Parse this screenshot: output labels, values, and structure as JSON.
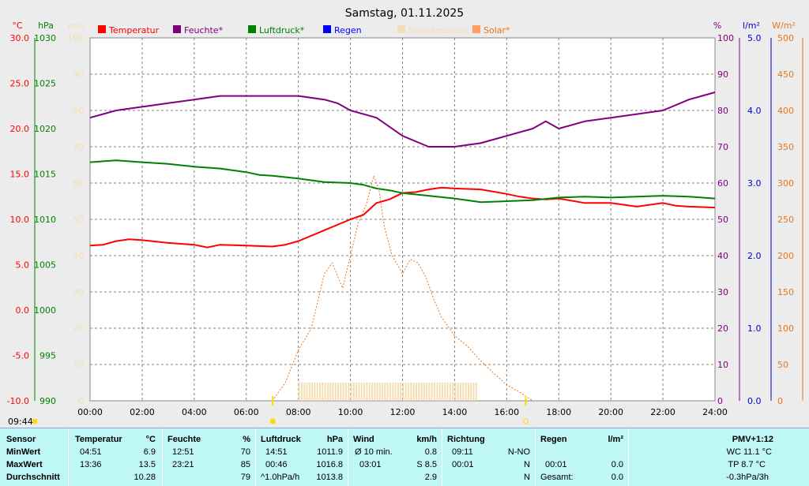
{
  "chart_data": {
    "type": "line",
    "title": "Samstag, 01.11.2025",
    "x_ticks": [
      "00:00",
      "02:00",
      "04:00",
      "06:00",
      "08:00",
      "10:00",
      "12:00",
      "14:00",
      "16:00",
      "18:00",
      "20:00",
      "22:00",
      "24:00"
    ],
    "x_range_hours": [
      0,
      24
    ],
    "axes": {
      "temp": {
        "unit": "°C",
        "ticks": [
          "30.0",
          "25.0",
          "20.0",
          "15.0",
          "10.0",
          "5.0",
          "0.0",
          "-5.0",
          "-10.0"
        ],
        "range": [
          -10,
          30
        ],
        "color": "#ff0000"
      },
      "pressure": {
        "unit": "hPa",
        "ticks": [
          "1030",
          "1025",
          "1020",
          "1015",
          "1010",
          "1005",
          "1000",
          "995",
          "990"
        ],
        "range": [
          990,
          1030
        ],
        "color": "#008000"
      },
      "minutes": {
        "unit": "min",
        "ticks": [
          "100",
          "90",
          "80",
          "70",
          "60",
          "50",
          "40",
          "30",
          "20",
          "10",
          "0"
        ],
        "range": [
          0,
          100
        ],
        "color": "#f5deb3"
      },
      "humidity": {
        "unit": "%",
        "ticks": [
          "100",
          "90",
          "80",
          "70",
          "60",
          "50",
          "40",
          "30",
          "20",
          "10",
          "0"
        ],
        "range": [
          0,
          100
        ],
        "color": "#800080"
      },
      "rain": {
        "unit": "l/m²",
        "ticks": [
          "5.0",
          "4.0",
          "3.0",
          "2.0",
          "1.0",
          "0.0"
        ],
        "range": [
          0,
          5
        ],
        "color": "#0000cd"
      },
      "solar": {
        "unit": "W/m²",
        "ticks": [
          "500",
          "450",
          "400",
          "350",
          "300",
          "250",
          "200",
          "150",
          "100",
          "50",
          "0"
        ],
        "range": [
          0,
          500
        ],
        "color": "#e8761a"
      }
    },
    "legend": [
      {
        "name": "Temperatur",
        "color": "#ff0000"
      },
      {
        "name": "Feuchte*",
        "color": "#800080"
      },
      {
        "name": "Luftdruck*",
        "color": "#008000"
      },
      {
        "name": "Regen",
        "color": "#0000ff"
      },
      {
        "name": "Sonnenschein",
        "color": "#f5deb3"
      },
      {
        "name": "Solar*",
        "color": "#ffa060"
      }
    ],
    "series": [
      {
        "name": "Temperatur",
        "axis": "temp",
        "color": "#ff0000",
        "x": [
          0,
          0.5,
          1,
          1.5,
          2,
          3,
          4,
          4.5,
          5,
          6,
          7,
          7.5,
          8,
          9,
          10,
          10.5,
          11,
          11.5,
          12,
          12.5,
          13,
          13.5,
          14,
          15,
          16,
          16.5,
          17,
          17.5,
          18,
          19,
          20,
          21,
          22,
          22.5,
          23,
          24
        ],
        "y": [
          7.1,
          7.2,
          7.6,
          7.8,
          7.7,
          7.4,
          7.2,
          6.9,
          7.2,
          7.1,
          7.0,
          7.2,
          7.6,
          8.8,
          10.0,
          10.5,
          11.8,
          12.2,
          12.9,
          13.0,
          13.3,
          13.5,
          13.4,
          13.3,
          12.8,
          12.5,
          12.3,
          12.2,
          12.3,
          11.8,
          11.8,
          11.4,
          11.8,
          11.5,
          11.4,
          11.3
        ]
      },
      {
        "name": "Feuchte*",
        "axis": "humidity",
        "color": "#800080",
        "x": [
          0,
          1,
          2,
          3,
          4,
          5,
          6,
          7,
          8,
          9,
          9.5,
          10,
          11,
          12,
          13,
          13.5,
          14,
          15,
          16,
          17,
          17.5,
          18,
          19,
          20,
          21,
          22,
          23,
          24
        ],
        "y": [
          78,
          80,
          81,
          82,
          83,
          84,
          84,
          84,
          84,
          83,
          82,
          80,
          78,
          73,
          70,
          70,
          70,
          71,
          73,
          75,
          77,
          75,
          77,
          78,
          79,
          80,
          83,
          85
        ]
      },
      {
        "name": "Luftdruck*",
        "axis": "pressure",
        "color": "#008000",
        "x": [
          0,
          0.5,
          1,
          2,
          3,
          4,
          5,
          6,
          6.5,
          7,
          8,
          9,
          10,
          10.5,
          11,
          11.5,
          12,
          13,
          14,
          15,
          16,
          17,
          18,
          19,
          20,
          21,
          22,
          23,
          24
        ],
        "y": [
          1016.3,
          1016.4,
          1016.5,
          1016.3,
          1016.1,
          1015.8,
          1015.6,
          1015.2,
          1014.9,
          1014.8,
          1014.5,
          1014.1,
          1014.0,
          1013.8,
          1013.4,
          1013.2,
          1012.9,
          1012.6,
          1012.3,
          1011.9,
          1012.0,
          1012.1,
          1012.4,
          1012.5,
          1012.4,
          1012.5,
          1012.6,
          1012.5,
          1012.3
        ]
      },
      {
        "name": "Solar*",
        "axis": "solar",
        "color": "#e8761a",
        "dashed": true,
        "x": [
          7,
          7.5,
          8,
          8.5,
          9,
          9.3,
          9.7,
          10,
          10.3,
          10.6,
          10.9,
          11.1,
          11.3,
          11.6,
          12,
          12.3,
          12.6,
          12.9,
          13.2,
          13.5,
          14,
          14.5,
          15,
          15.5,
          16,
          16.5,
          17
        ],
        "y": [
          0,
          25,
          70,
          100,
          175,
          190,
          155,
          200,
          245,
          270,
          310,
          290,
          240,
          200,
          175,
          195,
          190,
          170,
          140,
          115,
          90,
          75,
          55,
          38,
          22,
          12,
          0
        ]
      }
    ],
    "sunshine_bars": {
      "start_hour": 8.0,
      "end_hour": 14.8,
      "minutes": 5
    },
    "markers": {
      "sunrise": "07:01",
      "sunset": "16:44"
    }
  },
  "timestamp": "09:44",
  "stats": {
    "sensor": {
      "h": "Sensor",
      "min": "MinWert",
      "max": "MaxWert",
      "avg": "Durchschnitt"
    },
    "temperatur": {
      "h": "Temperatur",
      "unit": "°C",
      "min_t": "04:51",
      "min_v": "6.9",
      "max_t": "13:36",
      "max_v": "13.5",
      "avg_v": "10.28"
    },
    "feuchte": {
      "h": "Feuchte",
      "unit": "%",
      "min_t": "12:51",
      "min_v": "70",
      "max_t": "23:21",
      "max_v": "85",
      "avg_v": "79"
    },
    "luftdruck": {
      "h": "Luftdruck",
      "unit": "hPa",
      "min_t": "14:51",
      "min_v": "1011.9",
      "max_t": "00:46",
      "max_v": "1016.8",
      "avg_t": "^1.0hPa/h",
      "avg_v": "1013.8"
    },
    "wind": {
      "h": "Wind",
      "unit": "km/h",
      "min_t": "Ø 10 min.",
      "min_v": "0.8",
      "max_t": "03:01",
      "max_v": "S 8.5",
      "avg_v": "2.9"
    },
    "richtung": {
      "h": "Richtung",
      "min_t": "09:11",
      "min_v": "N-NO",
      "max_t": "00:01",
      "max_v": "N",
      "avg_v": "N"
    },
    "regen": {
      "h": "Regen",
      "unit": "l/m²",
      "max_t": "00:01",
      "max_v": "0.0",
      "avg_t": "Gesamt:",
      "avg_v": "0.0"
    },
    "pmv": {
      "h": "PMV+1:12",
      "l1": "WC 11.1 °C",
      "l2": "TP 8.7 °C",
      "l3": "-0.3hPa/3h"
    }
  }
}
